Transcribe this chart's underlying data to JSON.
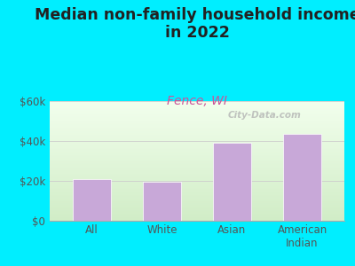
{
  "title": "Median non-family household income\nin 2022",
  "subtitle": "Fence, WI",
  "categories": [
    "All",
    "White",
    "Asian",
    "American\nIndian"
  ],
  "values": [
    21000,
    19500,
    39000,
    43500
  ],
  "bar_color": "#c8a8d8",
  "bar_edge_color": "#ffffff",
  "ylim": [
    0,
    60000
  ],
  "yticks": [
    0,
    20000,
    40000,
    60000
  ],
  "ytick_labels": [
    "$0",
    "$20k",
    "$40k",
    "$60k"
  ],
  "background_outer": "#00eeff",
  "title_color": "#222222",
  "subtitle_color": "#cc5599",
  "tick_color": "#555555",
  "watermark": "City-Data.com",
  "title_fontsize": 12.5,
  "subtitle_fontsize": 10,
  "tick_fontsize": 8.5,
  "grid_color": "#cccccc",
  "bar_linewidth": 0.5
}
